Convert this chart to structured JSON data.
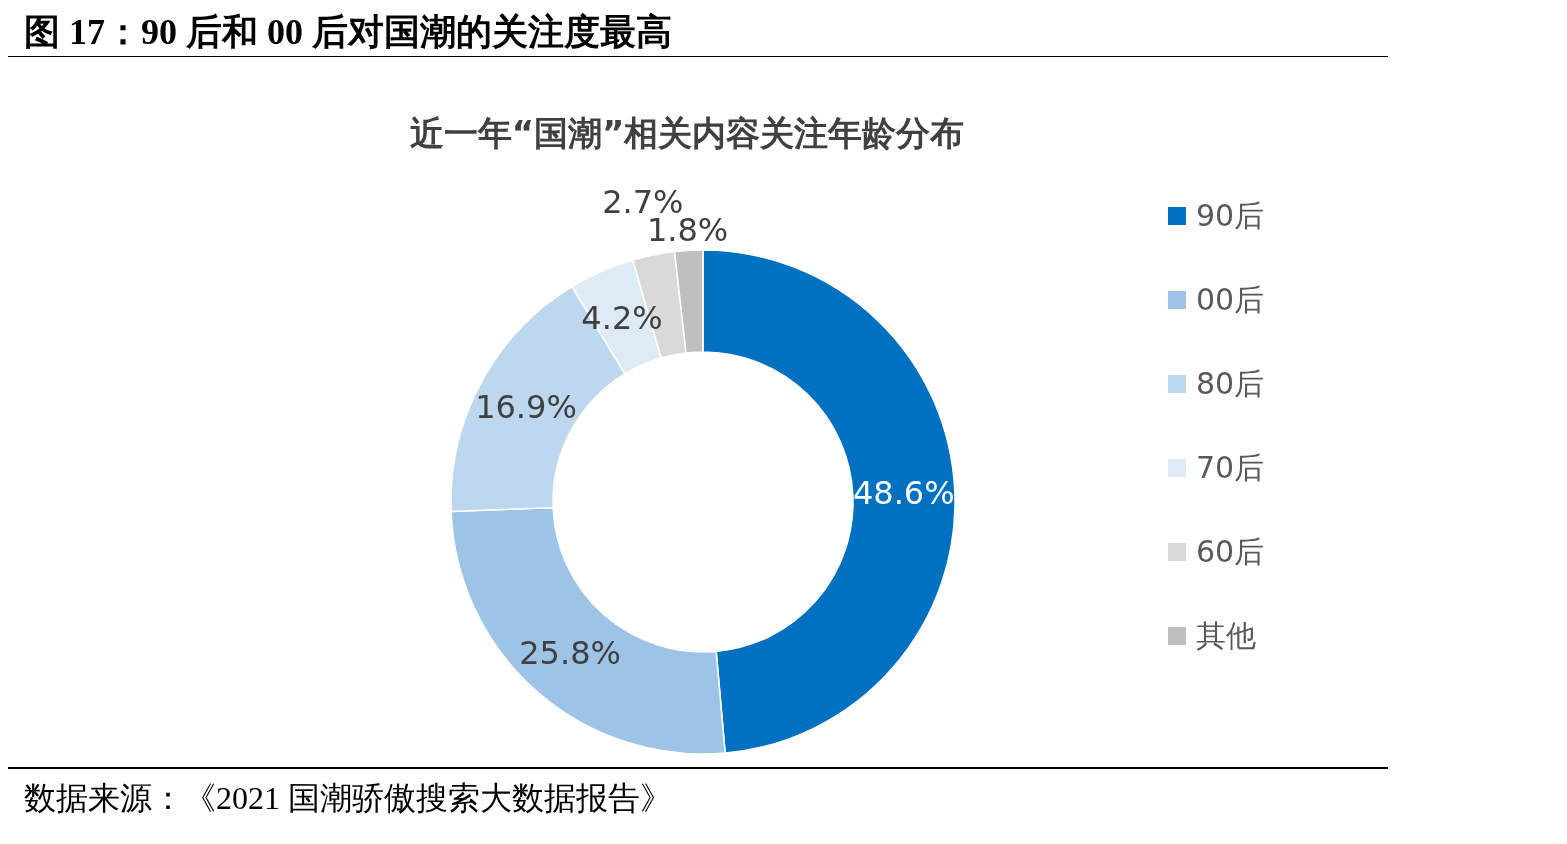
{
  "chart_data": {
    "type": "donut",
    "title": "图 17：90 后和 00 后对国潮的关注度最高",
    "subtitle": "近一年“国潮”相关内容关注年龄分布",
    "categories": [
      "90后",
      "00后",
      "80后",
      "70后",
      "60后",
      "其他"
    ],
    "values": [
      48.6,
      25.8,
      16.9,
      4.2,
      2.7,
      1.8
    ],
    "value_labels": [
      "48.6%",
      "25.8%",
      "16.9%",
      "4.2%",
      "2.7%",
      "1.8%"
    ],
    "colors": [
      "#0070c0",
      "#9dc3e6",
      "#bdd7ee",
      "#deebf7",
      "#d9d9d9",
      "#bfbfbf"
    ],
    "legend": "right",
    "annotations": [
      "数据来源：《2021 国潮骄傲搜索大数据报告》"
    ]
  }
}
